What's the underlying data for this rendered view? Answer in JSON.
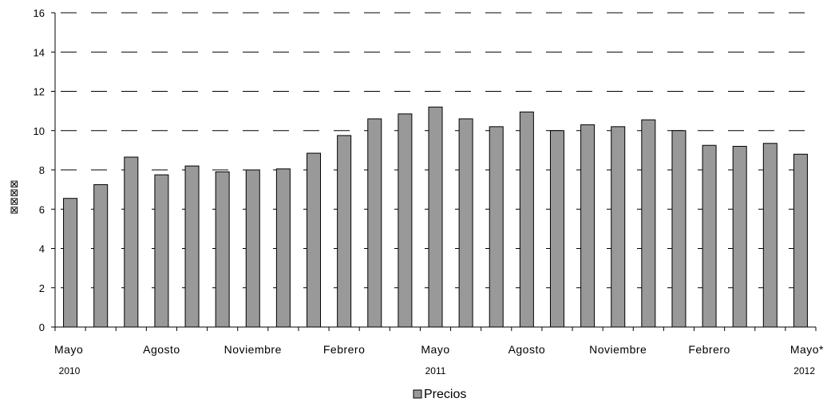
{
  "chart_data": {
    "type": "bar",
    "categories": [
      "Mayo",
      "",
      "",
      "Agosto",
      "",
      "",
      "Noviembre",
      "",
      "",
      "Febrero",
      "",
      "",
      "Mayo",
      "",
      "",
      "Agosto",
      "",
      "",
      "Noviembre",
      "",
      "",
      "Febrero",
      "",
      "",
      "Mayo*"
    ],
    "year_labels": [
      {
        "index": 0,
        "label": "2010"
      },
      {
        "index": 12,
        "label": "2011"
      },
      {
        "index": 24,
        "label": "2012"
      }
    ],
    "series": [
      {
        "name": "Precios",
        "color": "#999999",
        "values": [
          6.55,
          7.25,
          8.65,
          7.75,
          8.2,
          7.9,
          8.0,
          8.05,
          8.85,
          9.75,
          10.6,
          10.85,
          11.2,
          10.6,
          10.2,
          10.95,
          10.0,
          10.3,
          10.2,
          10.55,
          10.0,
          9.25,
          9.2,
          9.35,
          8.8
        ]
      }
    ],
    "ylabel": "⊠⊠⊠⊠",
    "ylim": [
      0,
      16
    ],
    "yticks": [
      0,
      2,
      4,
      6,
      8,
      10,
      12,
      14,
      16
    ],
    "grid": "dashed horizontal",
    "legend": "bottom-center"
  }
}
